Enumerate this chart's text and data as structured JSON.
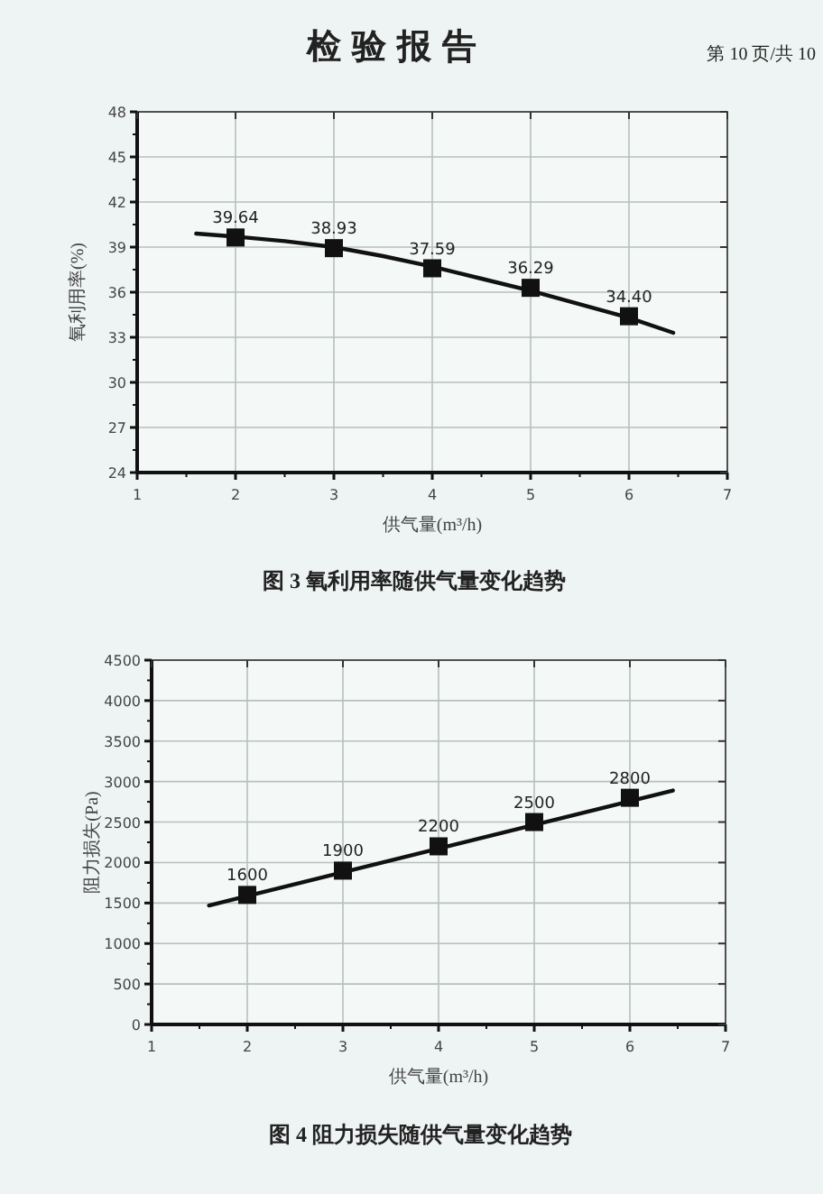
{
  "chart_data": [
    {
      "type": "scatter",
      "title": "图 3 氧利用率随供气量变化趋势",
      "annotations": [
        "检验报告",
        "第 10 页/共 10"
      ],
      "xlabel": "供气量(m³/h)",
      "ylabel": "氧利用率(%)",
      "x": [
        2,
        3,
        4,
        5,
        6
      ],
      "xlim": [
        1,
        7
      ],
      "xticks": [
        1,
        2,
        3,
        4,
        5,
        6,
        7
      ],
      "ylim": [
        24,
        48
      ],
      "yticks": [
        24,
        27,
        30,
        33,
        36,
        39,
        42,
        45,
        48
      ],
      "grid": true,
      "series": [
        {
          "color": "#111111",
          "marker": "square",
          "values": [
            39.64,
            38.93,
            37.59,
            36.29,
            34.4
          ],
          "value_labels": [
            "39.64",
            "38.93",
            "37.59",
            "36.29",
            "34.40"
          ]
        },
        {
          "type": "line",
          "color": "#111111",
          "line_style": "solid",
          "x": [
            1.6,
            2,
            2.5,
            3,
            3.5,
            4,
            4.5,
            5,
            5.5,
            6,
            6.45
          ],
          "values": [
            39.9,
            39.7,
            39.4,
            39.0,
            38.4,
            37.7,
            36.9,
            36.1,
            35.2,
            34.3,
            33.3
          ]
        }
      ]
    },
    {
      "type": "scatter",
      "title": "图 4 阻力损失随供气量变化趋势",
      "xlabel": "供气量(m³/h)",
      "ylabel": "阻力损失(Pa)",
      "x": [
        2,
        3,
        4,
        5,
        6
      ],
      "xlim": [
        1,
        7
      ],
      "xticks": [
        1,
        2,
        3,
        4,
        5,
        6,
        7
      ],
      "ylim": [
        0,
        4500
      ],
      "yticks": [
        0,
        500,
        1000,
        1500,
        2000,
        2500,
        3000,
        3500,
        4000,
        4500
      ],
      "grid": true,
      "series": [
        {
          "color": "#111111",
          "marker": "square",
          "values": [
            1600,
            1900,
            2200,
            2500,
            2800
          ],
          "value_labels": [
            "1600",
            "1900",
            "2200",
            "2500",
            "2800"
          ]
        },
        {
          "type": "line",
          "color": "#111111",
          "line_style": "solid",
          "x": [
            1.6,
            6.45
          ],
          "values": [
            1470,
            2890
          ]
        }
      ]
    }
  ]
}
